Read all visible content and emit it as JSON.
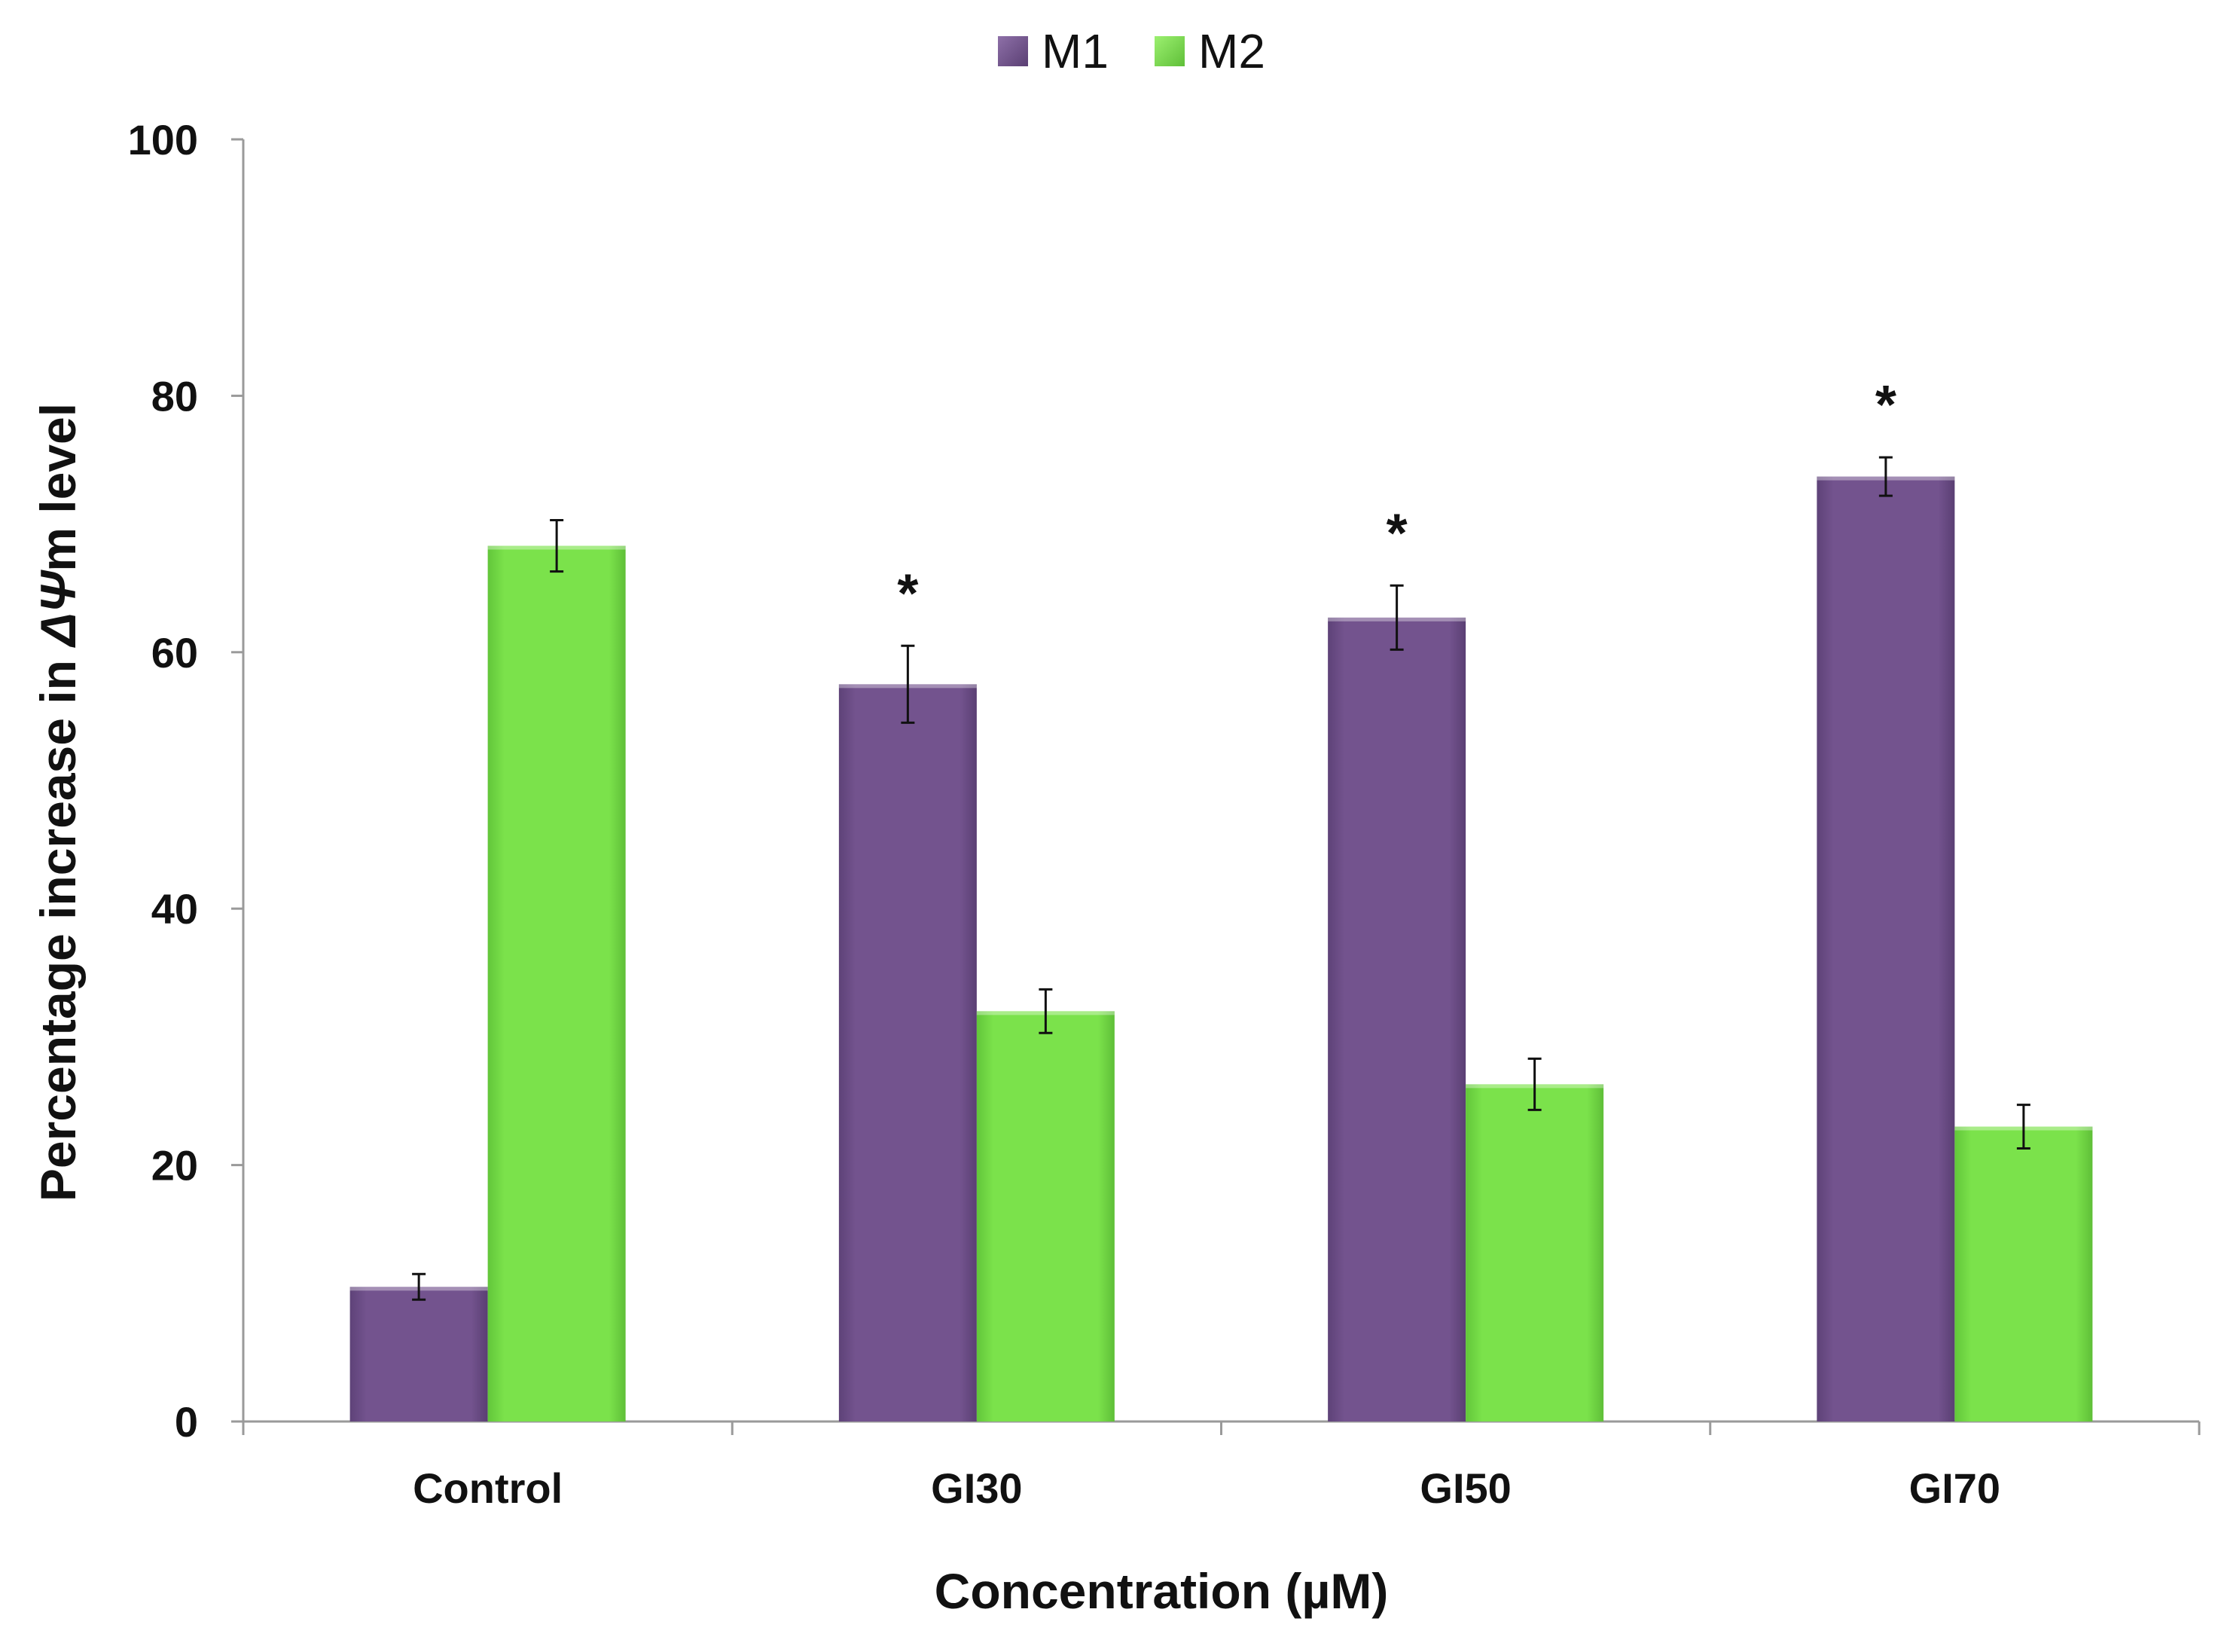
{
  "chart_data": {
    "type": "bar",
    "title": "",
    "xlabel": "Concentration (µM)",
    "ylabel_prefix": "Percentage increase in ",
    "ylabel_symbol": "ΔΨ",
    "ylabel_suffix": "m level",
    "ylim": [
      0,
      100
    ],
    "yticks": [
      0,
      20,
      40,
      60,
      80,
      100
    ],
    "grid": false,
    "legend_position": "top-center",
    "categories": [
      "Control",
      "GI30",
      "GI50",
      "GI70"
    ],
    "series": [
      {
        "name": "M1",
        "color": "#70508a",
        "values": [
          10.5,
          57.5,
          62.7,
          73.7
        ],
        "errors": [
          1.0,
          3.0,
          2.5,
          1.5
        ]
      },
      {
        "name": "M2",
        "color": "#78df48",
        "values": [
          68.3,
          32.0,
          26.3,
          23.0
        ],
        "errors": [
          2.0,
          1.7,
          2.0,
          1.7
        ]
      }
    ],
    "annotations": [
      {
        "series": "M1",
        "category": "GI30",
        "text": "*"
      },
      {
        "series": "M1",
        "category": "GI50",
        "text": "*"
      },
      {
        "series": "M1",
        "category": "GI70",
        "text": "*"
      }
    ]
  }
}
